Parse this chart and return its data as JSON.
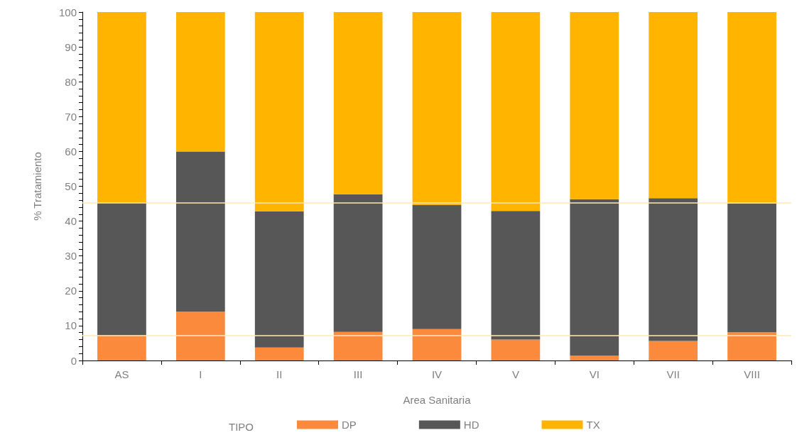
{
  "chart_data": {
    "type": "bar",
    "stacked": true,
    "xlabel": "Area Sanitaria",
    "ylabel": "% Tratamiento",
    "legend_title": "TIPO",
    "legend": "bottom",
    "grid": false,
    "categories": [
      "AS",
      "I",
      "II",
      "III",
      "IV",
      "V",
      "VI",
      "VII",
      "VIII"
    ],
    "series": [
      {
        "name": "DP",
        "color": "#fb8a3c",
        "values": [
          7.2,
          14,
          3.7,
          8.2,
          9,
          6,
          1.4,
          5.6,
          8.1
        ]
      },
      {
        "name": "HD",
        "color": "#575757",
        "values": [
          38,
          46,
          39.1,
          39.5,
          35.6,
          36.9,
          44.9,
          41,
          37
        ]
      },
      {
        "name": "TX",
        "color": "#ffb400",
        "values": [
          54.8,
          40,
          57.2,
          52.3,
          55.4,
          57.1,
          53.7,
          53.4,
          54.9
        ]
      }
    ],
    "ylim": [
      0,
      100
    ],
    "yticks": [
      0,
      {
        "value": 2,
        "label": null
      },
      {
        "value": 4,
        "label": null
      },
      {
        "value": 6,
        "label": null
      },
      {
        "value": 8,
        "label": null
      },
      10,
      {
        "value": 12,
        "label": null
      },
      {
        "value": 14,
        "label": null
      },
      {
        "value": 16,
        "label": null
      },
      {
        "value": 18,
        "label": null
      },
      20,
      {
        "value": 22,
        "label": null
      },
      {
        "value": 24,
        "label": null
      },
      {
        "value": 26,
        "label": null
      },
      {
        "value": 28,
        "label": null
      },
      30,
      {
        "value": 32,
        "label": null
      },
      {
        "value": 34,
        "label": null
      },
      {
        "value": 36,
        "label": null
      },
      {
        "value": 38,
        "label": null
      },
      40,
      {
        "value": 42,
        "label": null
      },
      {
        "value": 44,
        "label": null
      },
      {
        "value": 46,
        "label": null
      },
      {
        "value": 48,
        "label": null
      },
      50,
      {
        "value": 52,
        "label": null
      },
      {
        "value": 54,
        "label": null
      },
      {
        "value": 56,
        "label": null
      },
      {
        "value": 58,
        "label": null
      },
      60,
      {
        "value": 62,
        "label": null
      },
      {
        "value": 64,
        "label": null
      },
      {
        "value": 66,
        "label": null
      },
      {
        "value": 68,
        "label": null
      },
      70,
      {
        "value": 72,
        "label": null
      },
      {
        "value": 74,
        "label": null
      },
      {
        "value": 76,
        "label": null
      },
      {
        "value": 78,
        "label": null
      },
      80,
      {
        "value": 82,
        "label": null
      },
      {
        "value": 84,
        "label": null
      },
      {
        "value": 86,
        "label": null
      },
      {
        "value": 88,
        "label": null
      },
      90,
      {
        "value": 92,
        "label": null
      },
      {
        "value": 94,
        "label": null
      },
      {
        "value": 96,
        "label": null
      },
      {
        "value": 98,
        "label": null
      },
      100
    ],
    "ref_lines": [
      {
        "axis": "y",
        "value": 45.3,
        "color": "#ffe9b8"
      },
      {
        "axis": "y",
        "value": 7.2,
        "color": "#ffe9b8"
      }
    ]
  }
}
